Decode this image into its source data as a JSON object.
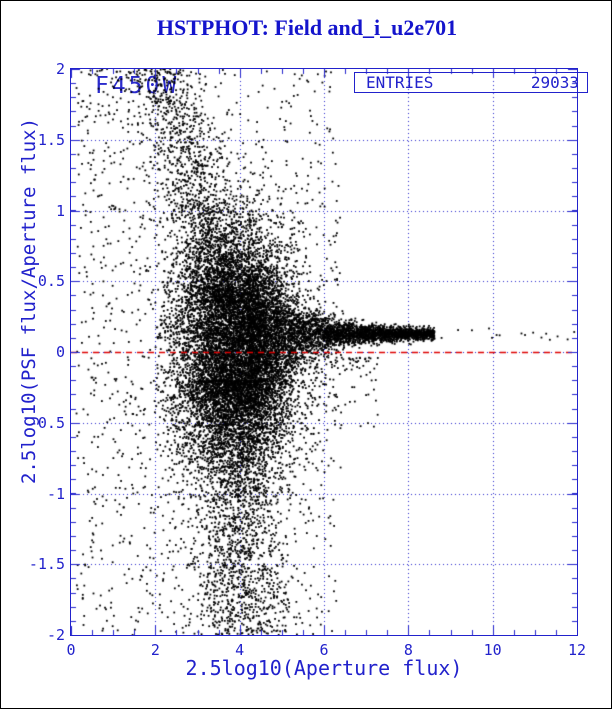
{
  "window": {
    "bg": "#ffffff",
    "border_color": "#000000"
  },
  "title": {
    "text": "HSTPHOT: Field and_i_u2e701",
    "color": "#1414cc"
  },
  "stat_box": {
    "label": "ENTRIES",
    "value": "29033"
  },
  "plot_label": {
    "text": "F450W"
  },
  "colors": {
    "accent_blue": "#2222cc",
    "reference_red": "#dd0000",
    "points": "#000000"
  },
  "chart_data": {
    "type": "scatter",
    "title": "HSTPHOT: Field and_i_u2e701",
    "series_label": "F450W",
    "entries": 29033,
    "xlabel": "2.5log10(Aperture flux)",
    "ylabel": "2.5log10(PSF flux/Aperture flux)",
    "xlim": [
      0,
      12
    ],
    "ylim": [
      -2,
      2
    ],
    "x_ticks": [
      {
        "v": 0,
        "label": "0"
      },
      {
        "v": 2,
        "label": "2"
      },
      {
        "v": 4,
        "label": "4"
      },
      {
        "v": 6,
        "label": "6"
      },
      {
        "v": 8,
        "label": "8"
      },
      {
        "v": 10,
        "label": "10"
      },
      {
        "v": 12,
        "label": "12"
      }
    ],
    "y_ticks": [
      {
        "v": 2,
        "label": "2"
      },
      {
        "v": 1.5,
        "label": "1.5"
      },
      {
        "v": 1,
        "label": "1"
      },
      {
        "v": 0.5,
        "label": "0.5"
      },
      {
        "v": 0,
        "label": "0"
      },
      {
        "v": -0.5,
        "label": "-0.5"
      },
      {
        "v": -1,
        "label": "-1"
      },
      {
        "v": -1.5,
        "label": "-1.5"
      },
      {
        "v": -2,
        "label": "-2"
      }
    ],
    "x_minor_step": 0.5,
    "y_minor_step": 0.1,
    "tick_major_len": 9,
    "tick_minor_len": 5,
    "grid": {
      "style": "dotted",
      "x_values": [
        2,
        4,
        6,
        8,
        10
      ],
      "y_values": [
        -1.5,
        -1,
        -0.5,
        0,
        0.5,
        1,
        1.5
      ]
    },
    "reference_line": {
      "y": 0,
      "style": "dashed",
      "color": "#dd0000"
    },
    "description": "Dense funnel-shaped point cloud: PSF/aperture flux ratio converges to +0.12 dex for bright stars (large aperture flux); huge scatter (-2..+2) for faint sources around x=2-5; tight horizontal band y=0.12 from x=4.5 to 8.6; isolated bright stars out to x=11.9.",
    "generator": {
      "seed": 1337,
      "marker_size": 1.8,
      "clusters": [
        {
          "kind": "gauss2d",
          "n": 9000,
          "cx": 3.9,
          "cy": 0.05,
          "sx": 0.72,
          "sy": 0.42,
          "clipX": [
            2.0,
            6.3
          ]
        },
        {
          "kind": "band",
          "n": 3600,
          "x0": 4.2,
          "x1": 8.62,
          "xPow": 1.25,
          "yc": 0.125,
          "sMin": 0.018,
          "sAmp": 0.3,
          "sDecay": 1.05
        },
        {
          "kind": "ridge",
          "n": 1500,
          "yMin": 0.35,
          "yMax": 2.05,
          "x0": 2.15,
          "slope": 0.92,
          "xs": 0.45,
          "bias": 1.6
        },
        {
          "kind": "spray",
          "n": 2600,
          "yBase": -0.2,
          "yAmp": 1.95,
          "yPow": 1.7,
          "xc": 3.85,
          "xs": 0.62,
          "drift": 0.12
        },
        {
          "kind": "uniform",
          "n": 620,
          "x0": 0.12,
          "x1": 2.45,
          "y0": -2,
          "y1": 2,
          "topBias": 1.35
        },
        {
          "kind": "uniform",
          "n": 650,
          "x0": 2.2,
          "x1": 6.4,
          "y0": -2,
          "y1": 2,
          "topBias": 1.0
        },
        {
          "kind": "powneg",
          "n": 160,
          "x0": 4.3,
          "x1": 7.3,
          "yBase": -0.04,
          "yAmp": 0.5,
          "yPow": 2.0
        },
        {
          "kind": "band",
          "n": 16,
          "x0": 8.7,
          "x1": 11.95,
          "xPow": 1.0,
          "yc": 0.12,
          "sMin": 0.035,
          "sAmp": 0,
          "sDecay": 1
        }
      ]
    }
  }
}
